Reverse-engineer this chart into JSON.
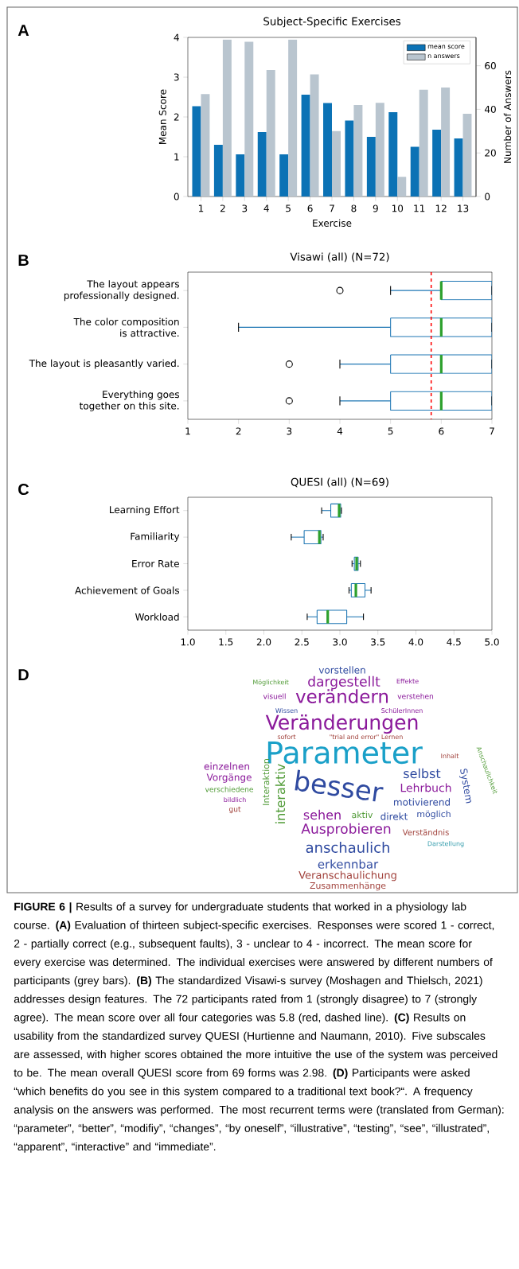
{
  "chart_data": [
    {
      "type": "bar",
      "title": "Subject-Specific Exercises",
      "xlabel": "Exercise",
      "ylabel": "Mean Score",
      "y2label": "Number of Answers",
      "categories": [
        "1",
        "2",
        "3",
        "4",
        "5",
        "6",
        "7",
        "8",
        "9",
        "10",
        "11",
        "12",
        "13"
      ],
      "series": [
        {
          "name": "mean score",
          "color": "#0b72b5",
          "values": [
            2.27,
            1.3,
            1.06,
            1.62,
            1.06,
            2.56,
            2.35,
            1.91,
            1.5,
            2.12,
            1.25,
            1.68,
            1.46
          ]
        },
        {
          "name": "n answers",
          "color": "#b9c5cf",
          "axis": "y2",
          "values": [
            47,
            72,
            71,
            58,
            72,
            56,
            30,
            42,
            43,
            9,
            49,
            50,
            38
          ]
        }
      ],
      "ylim": [
        0,
        4
      ],
      "yticks": [
        0,
        1,
        2,
        3,
        4
      ],
      "y2lim": [
        0,
        73
      ],
      "y2ticks": [
        0,
        20,
        40,
        60
      ],
      "legend": "top right",
      "annotations": [
        "A",
        "**FIGURE 6 |** Results of a survey for undergraduate students that worked in a physiology lab course. **(A)** Evaluation of thirteen subject-specific exercises. Responses were scored 1 - correct, 2 - partially correct (e.g., subsequent faults), 3 - unclear to 4 - incorrect. The mean score for every exercise was determined. The individual exercises were answered by different numbers of participants (grey bars). **(B)** The standardized Visawi-s survey (Moshagen and Thielsch, 2021) addresses design features. The 72 participants rated from 1 (strongly disagree) to 7 (strongly agree). The mean score over all four categories was 5.8 (red, dashed line). **(C)** Results on usability from the standardized survey QUESI (Hurtienne and Naumann, 2010). Five subscales are assessed, with higher scores obtained the more intuitive the use of the system was perceived to be. The mean overall QUESI score from 69 forms was 2.98. **(D)** Participants were asked “which benefits do you see in this system compared to a traditional text book?“. A frequency analysis on the answers was performed. The most recurrent terms were (translated from German): “parameter”, “better”, “modifiy”, “changes”, “by oneself”, “illustrative”, “testing”, “see”, “illustrated”, “apparent”, “interactive” and “immediate”."
      ]
    },
    {
      "type": "box",
      "orientation": "horizontal",
      "title": "Visawi (all) (N=72)",
      "color": "#1f77b4",
      "categories": [
        "The layout appears professionally designed.",
        "The color composition is attractive.",
        "The layout is pleasantly varied.",
        "Everything goes together on this site."
      ],
      "boxes": [
        {
          "low": 5,
          "q1": 6,
          "median": 6,
          "q3": 7,
          "high": 7,
          "outliers": [
            4
          ]
        },
        {
          "low": 2,
          "q1": 5,
          "median": 6,
          "q3": 7,
          "high": 7
        },
        {
          "low": 4,
          "q1": 5,
          "median": 6,
          "q3": 7,
          "high": 7,
          "outliers": [
            3
          ]
        },
        {
          "low": 4,
          "q1": 5,
          "median": 6,
          "q3": 7,
          "high": 7,
          "outliers": [
            3
          ]
        }
      ],
      "xlim": [
        1,
        7
      ],
      "xticks": [
        1,
        2,
        3,
        4,
        5,
        6,
        7
      ],
      "ref_lines": [
        {
          "axis": "x",
          "value": 5.8,
          "color": "#ff0000",
          "line_style": "dashed"
        }
      ],
      "annotations": [
        "B"
      ]
    },
    {
      "type": "box",
      "orientation": "horizontal",
      "title": "QUESI (all) (N=69)",
      "color": "#1f77b4",
      "categories": [
        "Learning Effort",
        "Familiarity",
        "Error Rate",
        "Achievement of Goals",
        "Workload"
      ],
      "boxes": [
        {
          "low": 2.76,
          "q1": 2.88,
          "median": 2.99,
          "q3": 3.01,
          "high": 3.02
        },
        {
          "low": 2.36,
          "q1": 2.53,
          "median": 2.73,
          "q3": 2.75,
          "high": 2.78
        },
        {
          "low": 3.16,
          "q1": 3.19,
          "median": 3.22,
          "q3": 3.24,
          "high": 3.27
        },
        {
          "low": 3.12,
          "q1": 3.15,
          "median": 3.21,
          "q3": 3.33,
          "high": 3.41
        },
        {
          "low": 2.57,
          "q1": 2.7,
          "median": 2.84,
          "q3": 3.09,
          "high": 3.31
        }
      ],
      "xlim": [
        1,
        5
      ],
      "xticks": [
        {
          "value": 1,
          "label": "1.0"
        },
        {
          "value": 1.5,
          "label": "1.5"
        },
        {
          "value": 2,
          "label": "2.0"
        },
        {
          "value": 2.5,
          "label": "2.5"
        },
        {
          "value": 3,
          "label": "3.0"
        },
        {
          "value": 3.5,
          "label": "3.5"
        },
        {
          "value": 4,
          "label": "4.0"
        },
        {
          "value": 4.5,
          "label": "4.5"
        },
        {
          "value": 5,
          "label": "5.0"
        }
      ],
      "annotations": [
        "C"
      ]
    },
    {
      "type": "other",
      "annotations": [
        "D",
        "Parameter",
        "besser",
        "Veränderungen",
        "verändern",
        "dargestellt",
        "vorstellen",
        "selbst",
        "Lehrbuch",
        "System",
        "motivierend",
        "möglich",
        "direkt",
        "sehen",
        "aktiv",
        "Ausprobieren",
        "Verständnis",
        "Darstellung",
        "anschaulich",
        "erkennbar",
        "Veranschaulichung",
        "Zusammenhänge",
        "Interaktion",
        "interaktiv",
        "einzelnen",
        "Vorgänge",
        "verschiedene",
        "bildlich",
        "gut",
        "Inhalt",
        "Anschaulichkeit",
        "Möglichkeit",
        "Effekte",
        "visuell",
        "verstehen",
        "Wissen",
        "SchülerInnen",
        "sofort",
        "\"trial and error\" Lernen"
      ]
    }
  ]
}
